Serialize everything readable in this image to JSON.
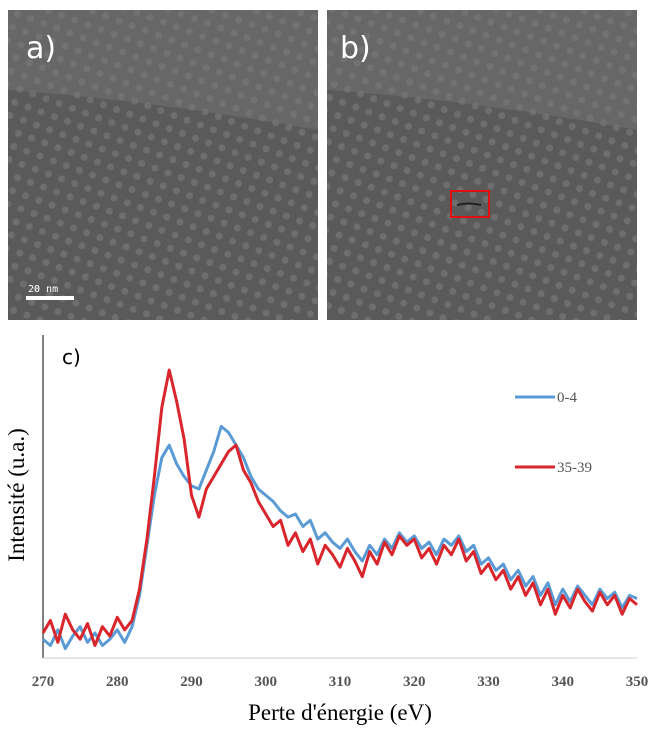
{
  "panels": [
    {
      "label": "a)",
      "scale_bar": "20 nm"
    },
    {
      "label": "b)"
    }
  ],
  "chart_data": {
    "type": "line",
    "annotation": "c)",
    "xlabel": "Perte d'énergie (eV)",
    "ylabel": "Intensité (u.a.)",
    "x": [
      270,
      271,
      272,
      273,
      274,
      275,
      276,
      277,
      278,
      279,
      280,
      281,
      282,
      283,
      284,
      285,
      286,
      287,
      288,
      289,
      290,
      291,
      292,
      293,
      294,
      295,
      296,
      297,
      298,
      299,
      300,
      301,
      302,
      303,
      304,
      305,
      306,
      307,
      308,
      309,
      310,
      311,
      312,
      313,
      314,
      315,
      316,
      317,
      318,
      319,
      320,
      321,
      322,
      323,
      324,
      325,
      326,
      327,
      328,
      329,
      330,
      331,
      332,
      333,
      334,
      335,
      336,
      337,
      338,
      339,
      340,
      341,
      342,
      343,
      344,
      345,
      346,
      347,
      348,
      349,
      350
    ],
    "xlim": [
      270,
      350
    ],
    "xticks": [
      270,
      280,
      290,
      300,
      310,
      320,
      330,
      340,
      350
    ],
    "ylim": [
      0,
      100
    ],
    "series": [
      {
        "name": "0-4",
        "color": "#5b9bd5",
        "values": [
          6,
          4,
          9,
          3,
          7,
          10,
          5,
          8,
          4,
          6,
          9,
          5,
          10,
          20,
          36,
          52,
          64,
          68,
          62,
          58,
          55,
          54,
          60,
          66,
          74,
          72,
          68,
          64,
          58,
          54,
          52,
          50,
          47,
          45,
          46,
          42,
          44,
          38,
          40,
          37,
          35,
          38,
          34,
          31,
          36,
          33,
          38,
          35,
          40,
          37,
          39,
          35,
          37,
          33,
          38,
          36,
          39,
          34,
          36,
          30,
          32,
          28,
          30,
          25,
          28,
          23,
          26,
          20,
          24,
          17,
          22,
          18,
          23,
          20,
          17,
          22,
          19,
          21,
          16,
          20,
          19
        ]
      },
      {
        "name": "35-39",
        "color": "#d9262c",
        "values": [
          8,
          12,
          5,
          14,
          9,
          6,
          11,
          4,
          10,
          7,
          13,
          9,
          12,
          22,
          38,
          58,
          80,
          92,
          82,
          70,
          52,
          45,
          54,
          58,
          62,
          66,
          68,
          60,
          56,
          50,
          46,
          42,
          44,
          36,
          40,
          34,
          38,
          30,
          36,
          33,
          29,
          35,
          31,
          26,
          34,
          30,
          37,
          33,
          39,
          36,
          38,
          32,
          35,
          30,
          36,
          33,
          38,
          31,
          34,
          27,
          30,
          25,
          28,
          22,
          26,
          20,
          24,
          17,
          22,
          14,
          20,
          16,
          22,
          18,
          15,
          21,
          17,
          20,
          14,
          19,
          17
        ]
      }
    ]
  }
}
